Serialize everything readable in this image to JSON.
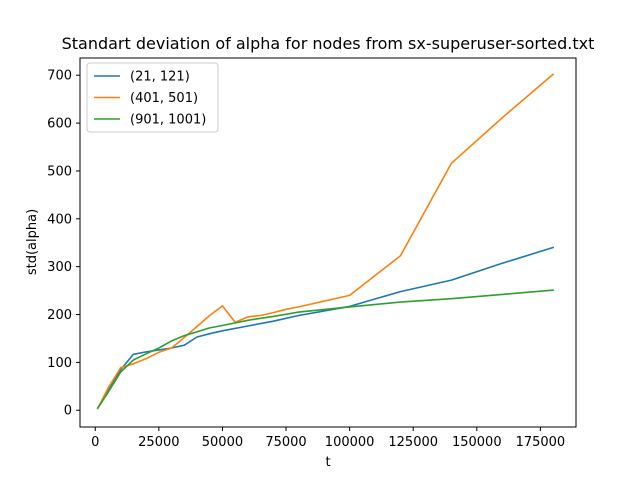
{
  "chart_data": {
    "type": "line",
    "title": "Standart deviation of alpha for nodes from sx-superuser-sorted.txt",
    "xlabel": "t",
    "ylabel": "std(alpha)",
    "xlim": [
      -6000,
      189000
    ],
    "ylim": [
      -35,
      736
    ],
    "xticks": [
      0,
      25000,
      50000,
      75000,
      100000,
      125000,
      150000,
      175000
    ],
    "yticks": [
      0,
      100,
      200,
      300,
      400,
      500,
      600,
      700
    ],
    "grid": false,
    "legend_position": "upper-left",
    "series": [
      {
        "name": "(21, 121)",
        "color": "#1f77b4",
        "x": [
          1000,
          5000,
          10000,
          15000,
          20000,
          25000,
          30000,
          35000,
          40000,
          45000,
          50000,
          60000,
          70000,
          80000,
          100000,
          120000,
          140000,
          160000,
          180000
        ],
        "y": [
          4,
          40,
          85,
          117,
          122,
          126,
          130,
          136,
          153,
          160,
          166,
          176,
          186,
          198,
          217,
          248,
          272,
          307,
          340
        ]
      },
      {
        "name": "(401, 501)",
        "color": "#ff7f0e",
        "x": [
          1000,
          5000,
          10000,
          15000,
          20000,
          25000,
          30000,
          35000,
          40000,
          45000,
          50000,
          55000,
          60000,
          65000,
          70000,
          75000,
          80000,
          100000,
          120000,
          140000,
          160000,
          180000
        ],
        "y": [
          4,
          46,
          89,
          97,
          108,
          121,
          130,
          152,
          175,
          198,
          218,
          184,
          195,
          198,
          204,
          211,
          216,
          240,
          323,
          516,
          611,
          702
        ]
      },
      {
        "name": "(901, 1001)",
        "color": "#2ca02c",
        "x": [
          1000,
          5000,
          10000,
          15000,
          20000,
          25000,
          30000,
          35000,
          40000,
          45000,
          50000,
          60000,
          70000,
          80000,
          100000,
          120000,
          140000,
          160000,
          180000
        ],
        "y": [
          5,
          37,
          80,
          105,
          118,
          130,
          145,
          156,
          164,
          172,
          177,
          188,
          196,
          205,
          216,
          226,
          233,
          242,
          251
        ]
      }
    ]
  }
}
